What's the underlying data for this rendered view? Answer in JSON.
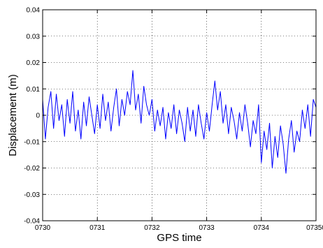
{
  "chart_data": {
    "type": "line",
    "title": "",
    "xlabel": "GPS time",
    "ylabel": "Displacement (m)",
    "x_tick_labels": [
      "0730",
      "0731",
      "0732",
      "0733",
      "0734",
      "07350"
    ],
    "y_tick_labels": [
      "0.04",
      "0.03",
      "0.02",
      "0.01",
      "0",
      "-0.01",
      "-0.02",
      "-0.03",
      "-0.04"
    ],
    "xlim": [
      0,
      5
    ],
    "ylim": [
      -0.04,
      0.04
    ],
    "grid": true,
    "series": [
      {
        "color": "#0000ff",
        "x": [
          0,
          0.05,
          0.1,
          0.15,
          0.2,
          0.25,
          0.3,
          0.35,
          0.4,
          0.45,
          0.5,
          0.55,
          0.6,
          0.65,
          0.7,
          0.75,
          0.8,
          0.85,
          0.9,
          0.95,
          1.0,
          1.05,
          1.1,
          1.15,
          1.2,
          1.25,
          1.3,
          1.35,
          1.4,
          1.45,
          1.5,
          1.55,
          1.6,
          1.65,
          1.7,
          1.75,
          1.8,
          1.85,
          1.9,
          1.95,
          2.0,
          2.05,
          2.1,
          2.15,
          2.2,
          2.25,
          2.3,
          2.35,
          2.4,
          2.45,
          2.5,
          2.55,
          2.6,
          2.65,
          2.7,
          2.75,
          2.8,
          2.85,
          2.9,
          2.95,
          3.0,
          3.05,
          3.1,
          3.15,
          3.2,
          3.25,
          3.3,
          3.35,
          3.4,
          3.45,
          3.5,
          3.55,
          3.6,
          3.65,
          3.7,
          3.75,
          3.8,
          3.85,
          3.9,
          3.95,
          4.0,
          4.05,
          4.1,
          4.15,
          4.2,
          4.25,
          4.3,
          4.35,
          4.4,
          4.45,
          4.5,
          4.55,
          4.6,
          4.65,
          4.7,
          4.75,
          4.8,
          4.85,
          4.9,
          4.95,
          5.0
        ],
        "values": [
          0.006,
          -0.009,
          0.003,
          0.009,
          -0.005,
          0.008,
          -0.002,
          0.004,
          -0.008,
          0.006,
          -0.003,
          0.009,
          -0.006,
          0.002,
          -0.009,
          0.005,
          -0.004,
          0.007,
          0.0,
          -0.007,
          0.004,
          -0.005,
          0.008,
          -0.002,
          0.005,
          -0.006,
          0.003,
          0.01,
          -0.004,
          0.006,
          0.0,
          0.009,
          0.004,
          0.017,
          0.002,
          0.008,
          -0.003,
          0.011,
          0.004,
          0.0,
          0.006,
          -0.006,
          0.002,
          -0.004,
          0.003,
          -0.009,
          0.001,
          -0.005,
          0.004,
          -0.007,
          0.002,
          -0.003,
          -0.01,
          0.003,
          -0.006,
          0.002,
          -0.008,
          0.004,
          -0.003,
          -0.009,
          0.001,
          -0.006,
          0.004,
          0.013,
          0.002,
          0.009,
          -0.003,
          0.004,
          -0.007,
          0.003,
          -0.002,
          -0.009,
          0.001,
          -0.006,
          0.004,
          -0.003,
          -0.012,
          -0.002,
          -0.007,
          0.004,
          -0.018,
          -0.006,
          -0.013,
          -0.003,
          -0.02,
          -0.008,
          -0.016,
          -0.004,
          -0.011,
          -0.022,
          -0.009,
          -0.002,
          -0.014,
          -0.006,
          -0.01,
          0.002,
          -0.005,
          0.004,
          -0.008,
          0.006,
          0.003
        ]
      }
    ]
  }
}
